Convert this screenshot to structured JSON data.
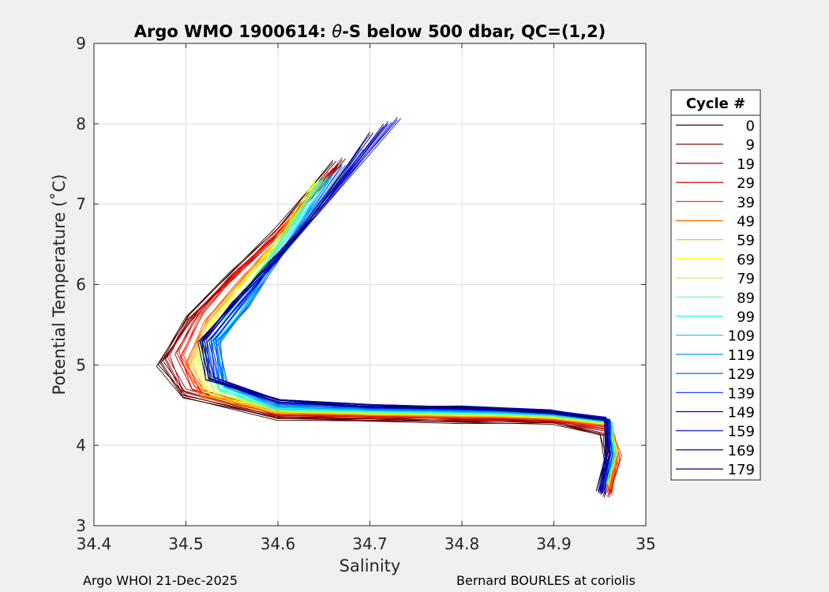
{
  "chart_data": {
    "type": "line",
    "title": "Argo WMO 1900614: θ-S below 500 dbar,  QC=(1,2)",
    "title_parts": [
      "Argo WMO 1900614: ",
      "θ",
      "-S below 500 dbar,  QC=(1,2)"
    ],
    "xlabel": "Salinity",
    "ylabel": "Potential Temperature (˚C)",
    "xlim": [
      34.4,
      35
    ],
    "ylim": [
      3,
      9
    ],
    "x_ticks": [
      34.4,
      34.5,
      34.6,
      34.7,
      34.8,
      34.9,
      35
    ],
    "x_tick_labels": [
      "34.4",
      "34.5",
      "34.6",
      "34.7",
      "34.8",
      "34.9",
      "35"
    ],
    "y_ticks": [
      3,
      4,
      5,
      6,
      7,
      8,
      9
    ],
    "y_tick_labels": [
      "3",
      "4",
      "5",
      "6",
      "7",
      "8",
      "9"
    ],
    "grid": true,
    "legend": {
      "title": "Cycle #",
      "placement": "right-outside",
      "entries": [
        {
          "label": "0",
          "color": "#3b0000"
        },
        {
          "label": "9",
          "color": "#6e0000"
        },
        {
          "label": "19",
          "color": "#a30000"
        },
        {
          "label": "29",
          "color": "#d60000"
        },
        {
          "label": "39",
          "color": "#ff1a00"
        },
        {
          "label": "49",
          "color": "#ff6600"
        },
        {
          "label": "59",
          "color": "#ffb300"
        },
        {
          "label": "69",
          "color": "#ffff00"
        },
        {
          "label": "79",
          "color": "#b3ff4d"
        },
        {
          "label": "89",
          "color": "#66ff99"
        },
        {
          "label": "99",
          "color": "#1affe6"
        },
        {
          "label": "109",
          "color": "#00ccff"
        },
        {
          "label": "119",
          "color": "#0099ff"
        },
        {
          "label": "129",
          "color": "#0066ff"
        },
        {
          "label": "139",
          "color": "#0033ff"
        },
        {
          "label": "149",
          "color": "#0000ff"
        },
        {
          "label": "159",
          "color": "#0000cc"
        },
        {
          "label": "169",
          "color": "#000099"
        },
        {
          "label": "179",
          "color": "#000066"
        }
      ]
    },
    "series": [
      {
        "cycle": "0",
        "color": "#3b0000",
        "points": [
          [
            34.66,
            7.55
          ],
          [
            34.6,
            6.7
          ],
          [
            34.55,
            6.15
          ],
          [
            34.5,
            5.6
          ],
          [
            34.47,
            5.0
          ],
          [
            34.5,
            4.62
          ],
          [
            34.6,
            4.34
          ],
          [
            34.7,
            4.3
          ],
          [
            34.8,
            4.27
          ],
          [
            34.9,
            4.28
          ],
          [
            34.95,
            4.15
          ],
          [
            34.955,
            3.8
          ],
          [
            34.95,
            3.4
          ]
        ]
      },
      {
        "cycle": "9",
        "color": "#6e0000",
        "points": [
          [
            34.67,
            7.58
          ],
          [
            34.61,
            6.72
          ],
          [
            34.56,
            6.2
          ],
          [
            34.51,
            5.65
          ],
          [
            34.475,
            5.05
          ],
          [
            34.5,
            4.65
          ],
          [
            34.6,
            4.36
          ],
          [
            34.7,
            4.31
          ],
          [
            34.8,
            4.29
          ],
          [
            34.9,
            4.3
          ],
          [
            34.955,
            4.15
          ],
          [
            34.96,
            3.75
          ],
          [
            34.955,
            3.35
          ]
        ]
      },
      {
        "cycle": "19",
        "color": "#a30000",
        "points": [
          [
            34.665,
            7.5
          ],
          [
            34.6,
            6.6
          ],
          [
            34.55,
            6.05
          ],
          [
            34.5,
            5.55
          ],
          [
            34.48,
            5.1
          ],
          [
            34.5,
            4.7
          ],
          [
            34.6,
            4.38
          ],
          [
            34.7,
            4.33
          ],
          [
            34.8,
            4.31
          ],
          [
            34.9,
            4.31
          ],
          [
            34.955,
            4.2
          ],
          [
            34.965,
            3.8
          ],
          [
            34.96,
            3.35
          ]
        ]
      },
      {
        "cycle": "29",
        "color": "#d60000",
        "points": [
          [
            34.66,
            7.45
          ],
          [
            34.6,
            6.62
          ],
          [
            34.55,
            6.1
          ],
          [
            34.51,
            5.6
          ],
          [
            34.49,
            5.15
          ],
          [
            34.51,
            4.72
          ],
          [
            34.6,
            4.4
          ],
          [
            34.7,
            4.35
          ],
          [
            34.8,
            4.33
          ],
          [
            34.9,
            4.32
          ],
          [
            34.96,
            4.22
          ],
          [
            34.968,
            3.85
          ],
          [
            34.962,
            3.38
          ]
        ]
      },
      {
        "cycle": "39",
        "color": "#ff1a00",
        "points": [
          [
            34.655,
            7.4
          ],
          [
            34.6,
            6.65
          ],
          [
            34.555,
            6.12
          ],
          [
            34.515,
            5.62
          ],
          [
            34.495,
            5.1
          ],
          [
            34.52,
            4.68
          ],
          [
            34.6,
            4.41
          ],
          [
            34.7,
            4.36
          ],
          [
            34.8,
            4.34
          ],
          [
            34.9,
            4.33
          ],
          [
            34.96,
            4.25
          ],
          [
            34.97,
            3.9
          ],
          [
            34.963,
            3.4
          ]
        ]
      },
      {
        "cycle": "49",
        "color": "#ff6600",
        "points": [
          [
            34.65,
            7.35
          ],
          [
            34.6,
            6.55
          ],
          [
            34.56,
            6.05
          ],
          [
            34.52,
            5.55
          ],
          [
            34.5,
            5.0
          ],
          [
            34.52,
            4.62
          ],
          [
            34.6,
            4.42
          ],
          [
            34.7,
            4.37
          ],
          [
            34.8,
            4.35
          ],
          [
            34.9,
            4.34
          ],
          [
            34.96,
            4.26
          ],
          [
            34.968,
            3.9
          ],
          [
            34.962,
            3.45
          ]
        ]
      },
      {
        "cycle": "59",
        "color": "#ffb300",
        "points": [
          [
            34.645,
            7.3
          ],
          [
            34.6,
            6.5
          ],
          [
            34.56,
            6.0
          ],
          [
            34.52,
            5.5
          ],
          [
            34.505,
            5.0
          ],
          [
            34.525,
            4.64
          ],
          [
            34.6,
            4.43
          ],
          [
            34.7,
            4.38
          ],
          [
            34.8,
            4.36
          ],
          [
            34.9,
            4.35
          ],
          [
            34.96,
            4.27
          ],
          [
            34.966,
            3.9
          ],
          [
            34.96,
            3.45
          ]
        ]
      },
      {
        "cycle": "69",
        "color": "#ffff00",
        "points": [
          [
            34.64,
            7.3
          ],
          [
            34.6,
            6.55
          ],
          [
            34.565,
            6.05
          ],
          [
            34.525,
            5.5
          ],
          [
            34.51,
            5.05
          ],
          [
            34.53,
            4.65
          ],
          [
            34.6,
            4.44
          ],
          [
            34.7,
            4.39
          ],
          [
            34.8,
            4.37
          ],
          [
            34.9,
            4.36
          ],
          [
            34.96,
            4.28
          ],
          [
            34.966,
            3.95
          ],
          [
            34.96,
            3.5
          ]
        ]
      },
      {
        "cycle": "79",
        "color": "#b3ff4d",
        "points": [
          [
            34.64,
            7.25
          ],
          [
            34.6,
            6.5
          ],
          [
            34.57,
            6.0
          ],
          [
            34.53,
            5.5
          ],
          [
            34.515,
            5.1
          ],
          [
            34.535,
            4.68
          ],
          [
            34.6,
            4.45
          ],
          [
            34.7,
            4.4
          ],
          [
            34.8,
            4.38
          ],
          [
            34.9,
            4.37
          ],
          [
            34.96,
            4.29
          ],
          [
            34.965,
            3.95
          ],
          [
            34.958,
            3.5
          ]
        ]
      },
      {
        "cycle": "89",
        "color": "#66ff99",
        "points": [
          [
            34.645,
            7.3
          ],
          [
            34.605,
            6.55
          ],
          [
            34.575,
            6.05
          ],
          [
            34.54,
            5.55
          ],
          [
            34.52,
            5.15
          ],
          [
            34.54,
            4.7
          ],
          [
            34.6,
            4.46
          ],
          [
            34.7,
            4.41
          ],
          [
            34.8,
            4.39
          ],
          [
            34.9,
            4.38
          ],
          [
            34.96,
            4.3
          ],
          [
            34.964,
            3.95
          ],
          [
            34.958,
            3.5
          ]
        ]
      },
      {
        "cycle": "99",
        "color": "#1affe6",
        "points": [
          [
            34.65,
            7.35
          ],
          [
            34.61,
            6.6
          ],
          [
            34.58,
            6.1
          ],
          [
            34.55,
            5.6
          ],
          [
            34.525,
            5.2
          ],
          [
            34.54,
            4.72
          ],
          [
            34.6,
            4.47
          ],
          [
            34.7,
            4.42
          ],
          [
            34.8,
            4.4
          ],
          [
            34.9,
            4.39
          ],
          [
            34.96,
            4.31
          ],
          [
            34.964,
            3.9
          ],
          [
            34.958,
            3.5
          ]
        ]
      },
      {
        "cycle": "109",
        "color": "#00ccff",
        "points": [
          [
            34.655,
            7.35
          ],
          [
            34.615,
            6.6
          ],
          [
            34.585,
            6.1
          ],
          [
            34.555,
            5.6
          ],
          [
            34.53,
            5.25
          ],
          [
            34.545,
            4.75
          ],
          [
            34.6,
            4.48
          ],
          [
            34.7,
            4.43
          ],
          [
            34.8,
            4.41
          ],
          [
            34.9,
            4.39
          ],
          [
            34.958,
            4.31
          ],
          [
            34.962,
            3.9
          ],
          [
            34.956,
            3.45
          ]
        ]
      },
      {
        "cycle": "119",
        "color": "#0099ff",
        "points": [
          [
            34.66,
            7.4
          ],
          [
            34.62,
            6.65
          ],
          [
            34.59,
            6.15
          ],
          [
            34.56,
            5.65
          ],
          [
            34.535,
            5.25
          ],
          [
            34.545,
            4.76
          ],
          [
            34.6,
            4.5
          ],
          [
            34.7,
            4.44
          ],
          [
            34.8,
            4.42
          ],
          [
            34.9,
            4.4
          ],
          [
            34.958,
            4.32
          ],
          [
            34.962,
            3.9
          ],
          [
            34.955,
            3.45
          ]
        ]
      },
      {
        "cycle": "129",
        "color": "#0066ff",
        "points": [
          [
            34.67,
            7.5
          ],
          [
            34.625,
            6.7
          ],
          [
            34.595,
            6.2
          ],
          [
            34.565,
            5.7
          ],
          [
            34.535,
            5.3
          ],
          [
            34.545,
            4.78
          ],
          [
            34.6,
            4.52
          ],
          [
            34.7,
            4.45
          ],
          [
            34.8,
            4.43
          ],
          [
            34.9,
            4.41
          ],
          [
            34.958,
            4.33
          ],
          [
            34.96,
            3.9
          ],
          [
            34.955,
            3.4
          ]
        ]
      },
      {
        "cycle": "139",
        "color": "#0033ff",
        "points": [
          [
            34.69,
            7.7
          ],
          [
            34.63,
            6.75
          ],
          [
            34.595,
            6.25
          ],
          [
            34.56,
            5.75
          ],
          [
            34.53,
            5.3
          ],
          [
            34.54,
            4.8
          ],
          [
            34.6,
            4.54
          ],
          [
            34.7,
            4.46
          ],
          [
            34.8,
            4.44
          ],
          [
            34.9,
            4.42
          ],
          [
            34.957,
            4.34
          ],
          [
            34.96,
            3.9
          ],
          [
            34.955,
            3.4
          ]
        ]
      },
      {
        "cycle": "149",
        "color": "#0000ff",
        "points": [
          [
            34.72,
            8.03
          ],
          [
            34.64,
            6.85
          ],
          [
            34.6,
            6.3
          ],
          [
            34.56,
            5.8
          ],
          [
            34.525,
            5.3
          ],
          [
            34.535,
            4.82
          ],
          [
            34.6,
            4.56
          ],
          [
            34.7,
            4.47
          ],
          [
            34.8,
            4.45
          ],
          [
            34.9,
            4.43
          ],
          [
            34.957,
            4.35
          ],
          [
            34.96,
            3.9
          ],
          [
            34.955,
            3.4
          ]
        ]
      },
      {
        "cycle": "159",
        "color": "#0000cc",
        "points": [
          [
            34.73,
            8.08
          ],
          [
            34.645,
            6.9
          ],
          [
            34.6,
            6.3
          ],
          [
            34.555,
            5.8
          ],
          [
            34.52,
            5.3
          ],
          [
            34.53,
            4.85
          ],
          [
            34.6,
            4.57
          ],
          [
            34.7,
            4.48
          ],
          [
            34.8,
            4.46
          ],
          [
            34.9,
            4.43
          ],
          [
            34.956,
            4.35
          ],
          [
            34.958,
            3.9
          ],
          [
            34.953,
            3.4
          ]
        ]
      },
      {
        "cycle": "169",
        "color": "#000099",
        "points": [
          [
            34.715,
            8.0
          ],
          [
            34.64,
            6.85
          ],
          [
            34.595,
            6.28
          ],
          [
            34.55,
            5.78
          ],
          [
            34.518,
            5.3
          ],
          [
            34.528,
            4.85
          ],
          [
            34.6,
            4.57
          ],
          [
            34.7,
            4.48
          ],
          [
            34.8,
            4.46
          ],
          [
            34.9,
            4.42
          ],
          [
            34.955,
            4.34
          ],
          [
            34.957,
            3.9
          ],
          [
            34.952,
            3.4
          ]
        ]
      },
      {
        "cycle": "179",
        "color": "#000066",
        "points": [
          [
            34.7,
            7.9
          ],
          [
            34.635,
            6.8
          ],
          [
            34.59,
            6.25
          ],
          [
            34.55,
            5.75
          ],
          [
            34.515,
            5.3
          ],
          [
            34.525,
            4.84
          ],
          [
            34.6,
            4.56
          ],
          [
            34.7,
            4.47
          ],
          [
            34.8,
            4.45
          ],
          [
            34.9,
            4.41
          ],
          [
            34.955,
            4.33
          ],
          [
            34.956,
            3.9
          ],
          [
            34.95,
            3.4
          ]
        ]
      }
    ]
  },
  "footer": {
    "left": "Argo WHOI 21-Dec-2025",
    "right": "Bernard BOURLES at coriolis"
  }
}
